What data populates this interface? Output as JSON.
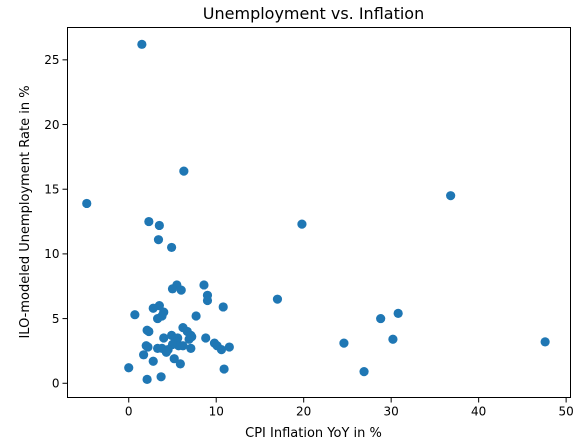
{
  "chart_data": {
    "type": "scatter",
    "title": "Unemployment vs. Inflation",
    "xlabel": "CPI Inflation YoY in %",
    "ylabel": "ILO-modeled Unemployment Rate in %",
    "xlim": [
      -7.0,
      50.5
    ],
    "ylim": [
      -1.1,
      27.5
    ],
    "xticks": [
      0,
      10,
      20,
      30,
      40,
      50
    ],
    "yticks": [
      0,
      5,
      10,
      15,
      20,
      25
    ],
    "grid": false,
    "marker_color": "#1f77b4",
    "points": [
      [
        1.5,
        26.2
      ],
      [
        6.3,
        16.4
      ],
      [
        -4.8,
        13.9
      ],
      [
        36.8,
        14.5
      ],
      [
        2.3,
        12.5
      ],
      [
        3.5,
        12.2
      ],
      [
        19.8,
        12.3
      ],
      [
        3.4,
        11.1
      ],
      [
        4.9,
        10.5
      ],
      [
        5.5,
        7.6
      ],
      [
        8.6,
        7.6
      ],
      [
        5.0,
        7.3
      ],
      [
        6.0,
        7.2
      ],
      [
        9.0,
        6.8
      ],
      [
        9.0,
        6.4
      ],
      [
        17.0,
        6.5
      ],
      [
        10.8,
        5.9
      ],
      [
        3.5,
        6.0
      ],
      [
        2.8,
        5.8
      ],
      [
        4.0,
        5.5
      ],
      [
        0.7,
        5.3
      ],
      [
        3.8,
        5.2
      ],
      [
        3.3,
        5.0
      ],
      [
        28.8,
        5.0
      ],
      [
        30.8,
        5.4
      ],
      [
        7.7,
        5.2
      ],
      [
        2.3,
        4.0
      ],
      [
        2.1,
        4.1
      ],
      [
        6.2,
        4.3
      ],
      [
        6.7,
        4.0
      ],
      [
        4.9,
        3.7
      ],
      [
        7.1,
        3.7
      ],
      [
        4.0,
        3.5
      ],
      [
        5.3,
        3.4
      ],
      [
        5.6,
        3.5
      ],
      [
        6.9,
        3.4
      ],
      [
        8.8,
        3.5
      ],
      [
        7.2,
        3.6
      ],
      [
        5.5,
        3.2
      ],
      [
        5.7,
        2.9
      ],
      [
        6.2,
        2.9
      ],
      [
        5.0,
        3.0
      ],
      [
        2.0,
        2.9
      ],
      [
        2.2,
        2.8
      ],
      [
        3.3,
        2.7
      ],
      [
        3.8,
        2.7
      ],
      [
        4.5,
        2.6
      ],
      [
        7.1,
        2.7
      ],
      [
        9.8,
        3.1
      ],
      [
        10.1,
        2.9
      ],
      [
        10.6,
        2.6
      ],
      [
        11.5,
        2.8
      ],
      [
        24.6,
        3.1
      ],
      [
        30.2,
        3.4
      ],
      [
        47.6,
        3.2
      ],
      [
        4.3,
        2.4
      ],
      [
        1.7,
        2.2
      ],
      [
        2.8,
        1.7
      ],
      [
        5.2,
        1.9
      ],
      [
        5.9,
        1.5
      ],
      [
        0.0,
        1.2
      ],
      [
        10.9,
        1.1
      ],
      [
        26.9,
        0.9
      ],
      [
        3.7,
        0.5
      ],
      [
        2.1,
        0.3
      ]
    ]
  }
}
